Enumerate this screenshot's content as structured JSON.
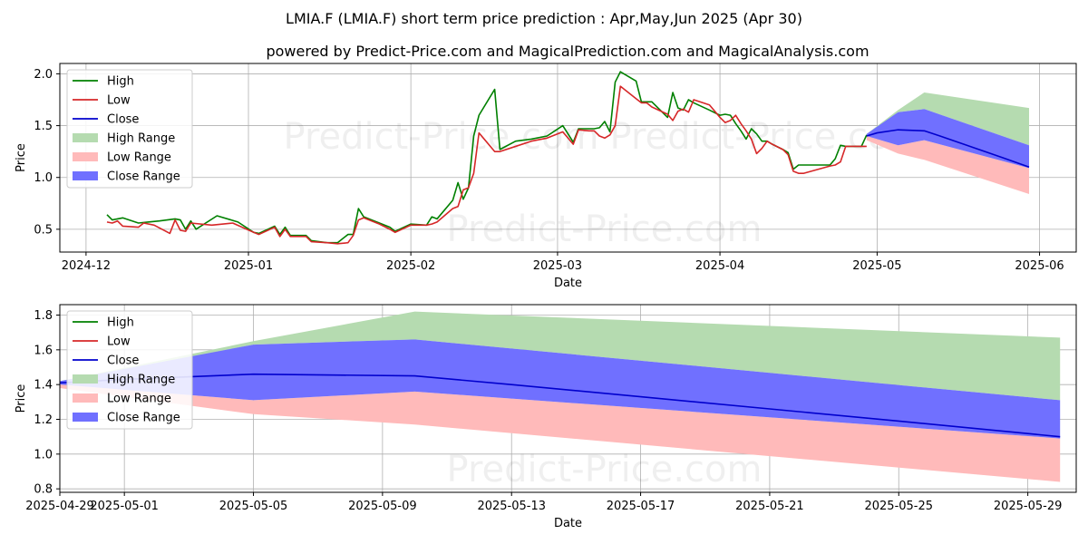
{
  "title": "LMIA.F (LMIA.F) short term price prediction : Apr,May,Jun 2025 (Apr 30)",
  "subtitle": "powered by Predict-Price.com and MagicalPrediction.com and MagicalAnalysis.com",
  "watermark": "Predict-Price.com",
  "legend_labels": [
    "High",
    "Low",
    "Close",
    "High Range",
    "Low Range",
    "Close Range"
  ],
  "colors": {
    "high": "#008000",
    "low": "#d62728",
    "close": "#0000cd",
    "high_range": "#b5dbb0",
    "low_range": "#ffbaba",
    "close_range": "#7070ff"
  },
  "chart_data": [
    {
      "type": "line",
      "xlabel": "Date",
      "ylabel": "Price",
      "xlim": [
        "2024-11-26",
        "2025-06-08"
      ],
      "ylim": [
        0.28,
        2.1
      ],
      "xticks": [
        "2024-12-01",
        "2025-01-01",
        "2025-02-01",
        "2025-03-01",
        "2025-04-01",
        "2025-05-01",
        "2025-06-01"
      ],
      "xtick_labels": [
        "2024-12",
        "2025-01",
        "2025-02",
        "2025-03",
        "2025-04",
        "2025-05",
        "2025-06"
      ],
      "yticks": [
        0.5,
        1.0,
        1.5,
        2.0
      ],
      "ytick_labels": [
        "0.5",
        "1.0",
        "1.5",
        "2.0"
      ],
      "grid": true,
      "legend_position": "upper-left",
      "series": [
        {
          "name": "High",
          "x": [
            "2024-12-05",
            "2024-12-06",
            "2024-12-07",
            "2024-12-08",
            "2024-12-11",
            "2024-12-13",
            "2024-12-15",
            "2024-12-18",
            "2024-12-19",
            "2024-12-20",
            "2024-12-21",
            "2024-12-22",
            "2024-12-26",
            "2024-12-30",
            "2025-01-02",
            "2025-01-03",
            "2025-01-06",
            "2025-01-07",
            "2025-01-08",
            "2025-01-09",
            "2025-01-12",
            "2025-01-13",
            "2025-01-16",
            "2025-01-18",
            "2025-01-20",
            "2025-01-21",
            "2025-01-22",
            "2025-01-23",
            "2025-01-26",
            "2025-01-28",
            "2025-01-29",
            "2025-02-01",
            "2025-02-04",
            "2025-02-05",
            "2025-02-06",
            "2025-02-09",
            "2025-02-10",
            "2025-02-11",
            "2025-02-12",
            "2025-02-13",
            "2025-02-14",
            "2025-02-17",
            "2025-02-18",
            "2025-02-21",
            "2025-02-24",
            "2025-02-27",
            "2025-03-02",
            "2025-03-03",
            "2025-03-04",
            "2025-03-05",
            "2025-03-07",
            "2025-03-08",
            "2025-03-09",
            "2025-03-10",
            "2025-03-11",
            "2025-03-12",
            "2025-03-13",
            "2025-03-16",
            "2025-03-17",
            "2025-03-18",
            "2025-03-19",
            "2025-03-22",
            "2025-03-23",
            "2025-03-24",
            "2025-03-25",
            "2025-03-26",
            "2025-03-27",
            "2025-03-30",
            "2025-04-01",
            "2025-04-02",
            "2025-04-03",
            "2025-04-04",
            "2025-04-05",
            "2025-04-06",
            "2025-04-07",
            "2025-04-08",
            "2025-04-09",
            "2025-04-10",
            "2025-04-11",
            "2025-04-13",
            "2025-04-14",
            "2025-04-15",
            "2025-04-16",
            "2025-04-17",
            "2025-04-22",
            "2025-04-23",
            "2025-04-24",
            "2025-04-25",
            "2025-04-28",
            "2025-04-29"
          ],
          "values": [
            0.64,
            0.59,
            0.6,
            0.61,
            0.56,
            0.57,
            0.58,
            0.6,
            0.59,
            0.5,
            0.58,
            0.5,
            0.63,
            0.57,
            0.47,
            0.46,
            0.53,
            0.45,
            0.52,
            0.44,
            0.44,
            0.39,
            0.37,
            0.37,
            0.45,
            0.45,
            0.7,
            0.62,
            0.56,
            0.52,
            0.48,
            0.55,
            0.54,
            0.62,
            0.6,
            0.78,
            0.95,
            0.79,
            0.9,
            1.4,
            1.6,
            1.85,
            1.27,
            1.35,
            1.37,
            1.4,
            1.5,
            1.42,
            1.34,
            1.47,
            1.47,
            1.47,
            1.48,
            1.54,
            1.44,
            1.92,
            2.02,
            1.93,
            1.73,
            1.73,
            1.73,
            1.58,
            1.82,
            1.67,
            1.65,
            1.75,
            1.72,
            1.65,
            1.6,
            1.61,
            1.6,
            1.52,
            1.45,
            1.37,
            1.47,
            1.42,
            1.35,
            1.35,
            1.32,
            1.27,
            1.24,
            1.08,
            1.12,
            1.12,
            1.12,
            1.18,
            1.31,
            1.3,
            1.3,
            1.41
          ]
        },
        {
          "name": "Low",
          "x": [
            "2024-12-05",
            "2024-12-06",
            "2024-12-07",
            "2024-12-08",
            "2024-12-11",
            "2024-12-12",
            "2024-12-14",
            "2024-12-17",
            "2024-12-18",
            "2024-12-19",
            "2024-12-20",
            "2024-12-21",
            "2024-12-25",
            "2024-12-29",
            "2025-01-02",
            "2025-01-03",
            "2025-01-06",
            "2025-01-07",
            "2025-01-08",
            "2025-01-09",
            "2025-01-12",
            "2025-01-13",
            "2025-01-16",
            "2025-01-18",
            "2025-01-20",
            "2025-01-21",
            "2025-01-22",
            "2025-01-23",
            "2025-01-26",
            "2025-01-28",
            "2025-01-29",
            "2025-02-01",
            "2025-02-04",
            "2025-02-05",
            "2025-02-06",
            "2025-02-09",
            "2025-02-10",
            "2025-02-11",
            "2025-02-12",
            "2025-02-13",
            "2025-02-14",
            "2025-02-17",
            "2025-02-18",
            "2025-02-21",
            "2025-02-24",
            "2025-02-27",
            "2025-03-02",
            "2025-03-03",
            "2025-03-04",
            "2025-03-05",
            "2025-03-07",
            "2025-03-08",
            "2025-03-09",
            "2025-03-10",
            "2025-03-11",
            "2025-03-12",
            "2025-03-13",
            "2025-03-16",
            "2025-03-17",
            "2025-03-18",
            "2025-03-19",
            "2025-03-22",
            "2025-03-23",
            "2025-03-24",
            "2025-03-25",
            "2025-03-26",
            "2025-03-27",
            "2025-03-30",
            "2025-04-01",
            "2025-04-02",
            "2025-04-03",
            "2025-04-04",
            "2025-04-05",
            "2025-04-06",
            "2025-04-07",
            "2025-04-08",
            "2025-04-09",
            "2025-04-10",
            "2025-04-11",
            "2025-04-13",
            "2025-04-14",
            "2025-04-15",
            "2025-04-16",
            "2025-04-17",
            "2025-04-22",
            "2025-04-23",
            "2025-04-24",
            "2025-04-25",
            "2025-04-28",
            "2025-04-29"
          ],
          "values": [
            0.57,
            0.56,
            0.58,
            0.53,
            0.52,
            0.56,
            0.54,
            0.46,
            0.59,
            0.49,
            0.48,
            0.56,
            0.54,
            0.56,
            0.47,
            0.45,
            0.52,
            0.43,
            0.5,
            0.43,
            0.43,
            0.38,
            0.37,
            0.36,
            0.37,
            0.44,
            0.59,
            0.61,
            0.55,
            0.5,
            0.47,
            0.54,
            0.54,
            0.55,
            0.57,
            0.7,
            0.72,
            0.88,
            0.9,
            1.04,
            1.43,
            1.25,
            1.25,
            1.3,
            1.35,
            1.38,
            1.44,
            1.38,
            1.32,
            1.46,
            1.45,
            1.45,
            1.4,
            1.38,
            1.41,
            1.5,
            1.88,
            1.76,
            1.72,
            1.72,
            1.68,
            1.61,
            1.55,
            1.64,
            1.66,
            1.63,
            1.75,
            1.7,
            1.58,
            1.53,
            1.55,
            1.6,
            1.52,
            1.45,
            1.37,
            1.23,
            1.28,
            1.35,
            1.32,
            1.27,
            1.22,
            1.06,
            1.04,
            1.04,
            1.11,
            1.12,
            1.15,
            1.3,
            1.3,
            1.3
          ]
        },
        {
          "name": "Close",
          "x": [
            "2025-04-29",
            "2025-05-01",
            "2025-05-05",
            "2025-05-10",
            "2025-05-13",
            "2025-05-17",
            "2025-05-21",
            "2025-05-25",
            "2025-05-30"
          ],
          "values": [
            1.4,
            1.43,
            1.46,
            1.45,
            1.4,
            1.33,
            1.26,
            1.19,
            1.1
          ]
        },
        {
          "name": "High Range",
          "x": [
            "2025-04-29",
            "2025-05-05",
            "2025-05-10",
            "2025-05-30"
          ],
          "upper": [
            1.42,
            1.65,
            1.82,
            1.67
          ],
          "lower": [
            1.4,
            1.63,
            1.66,
            1.31
          ]
        },
        {
          "name": "Low Range",
          "x": [
            "2025-04-29",
            "2025-05-05",
            "2025-05-10",
            "2025-05-30"
          ],
          "upper": [
            1.4,
            1.31,
            1.36,
            1.09
          ],
          "lower": [
            1.36,
            1.23,
            1.17,
            0.84
          ]
        },
        {
          "name": "Close Range",
          "x": [
            "2025-04-29",
            "2025-05-05",
            "2025-05-10",
            "2025-05-30"
          ],
          "upper": [
            1.42,
            1.63,
            1.66,
            1.31
          ],
          "lower": [
            1.4,
            1.31,
            1.36,
            1.09
          ]
        }
      ]
    },
    {
      "type": "line",
      "xlabel": "Date",
      "ylabel": "Price",
      "xlim": [
        "2025-04-29T00:00",
        "2025-05-30T12:00"
      ],
      "ylim": [
        0.78,
        1.86
      ],
      "xticks": [
        "2025-04-29",
        "2025-05-01",
        "2025-05-05",
        "2025-05-09",
        "2025-05-13",
        "2025-05-17",
        "2025-05-21",
        "2025-05-25",
        "2025-05-29"
      ],
      "xtick_labels": [
        "2025-04-29",
        "2025-05-01",
        "2025-05-05",
        "2025-05-09",
        "2025-05-13",
        "2025-05-17",
        "2025-05-21",
        "2025-05-25",
        "2025-05-29"
      ],
      "yticks": [
        0.8,
        1.0,
        1.2,
        1.4,
        1.6,
        1.8
      ],
      "ytick_labels": [
        "0.8",
        "1.0",
        "1.2",
        "1.4",
        "1.6",
        "1.8"
      ],
      "grid": true,
      "legend_position": "upper-left",
      "series": [
        {
          "name": "Close",
          "x": [
            "2025-04-29",
            "2025-05-01",
            "2025-05-05",
            "2025-05-10",
            "2025-05-13",
            "2025-05-17",
            "2025-05-21",
            "2025-05-25",
            "2025-05-30"
          ],
          "values": [
            1.41,
            1.43,
            1.46,
            1.45,
            1.4,
            1.33,
            1.26,
            1.19,
            1.1
          ]
        },
        {
          "name": "High Range",
          "x": [
            "2025-04-29",
            "2025-05-05",
            "2025-05-10",
            "2025-05-30"
          ],
          "upper": [
            1.42,
            1.65,
            1.82,
            1.67
          ],
          "lower": [
            1.41,
            1.63,
            1.66,
            1.31
          ]
        },
        {
          "name": "Low Range",
          "x": [
            "2025-04-29",
            "2025-05-05",
            "2025-05-10",
            "2025-05-30"
          ],
          "upper": [
            1.4,
            1.31,
            1.36,
            1.09
          ],
          "lower": [
            1.38,
            1.23,
            1.17,
            0.84
          ]
        },
        {
          "name": "Close Range",
          "x": [
            "2025-04-29",
            "2025-05-05",
            "2025-05-10",
            "2025-05-30"
          ],
          "upper": [
            1.42,
            1.63,
            1.66,
            1.31
          ],
          "lower": [
            1.4,
            1.31,
            1.36,
            1.09
          ]
        }
      ]
    }
  ]
}
